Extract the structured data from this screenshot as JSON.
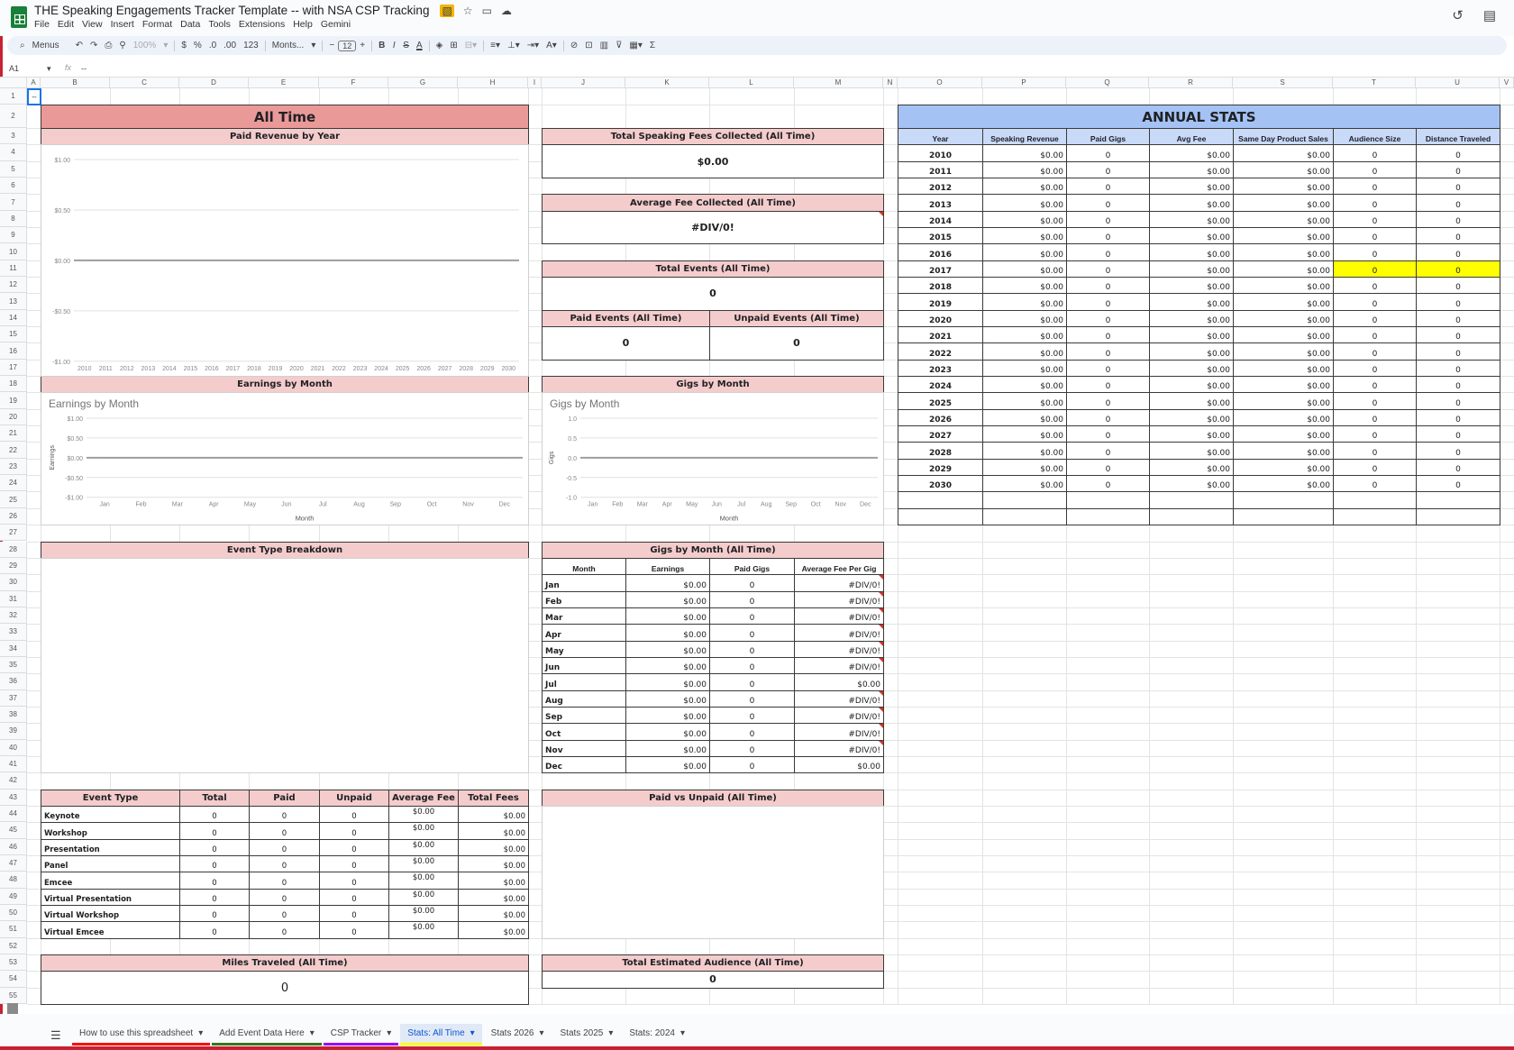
{
  "app": {
    "title": "THE Speaking Engagements Tracker Template -- with NSA CSP Tracking",
    "title_icons": [
      "extension-icon",
      "star-icon",
      "move-folder-icon",
      "cloud-status-icon"
    ],
    "menu": [
      "File",
      "Edit",
      "View",
      "Insert",
      "Format",
      "Data",
      "Tools",
      "Extensions",
      "Help",
      "Gemini"
    ],
    "top_right_icons": [
      "version-history-icon",
      "comments-icon"
    ]
  },
  "toolbar": {
    "search_label": "Menus",
    "zoom": "100%",
    "currency": "$",
    "percent": "%",
    "decrease_decimal": ".0",
    "increase_decimal": ".00",
    "number_format": "123",
    "font": "Monts...",
    "font_size": "12",
    "bold": "B",
    "italic": "I",
    "strike": "S",
    "text_color": "A",
    "sum": "Σ"
  },
  "formula_bar": {
    "cell_ref": "A1",
    "fx": "fx",
    "value": "--"
  },
  "grid": {
    "columns": [
      "A",
      "B",
      "C",
      "D",
      "E",
      "F",
      "G",
      "H",
      "I",
      "J",
      "K",
      "L",
      "M",
      "N",
      "O",
      "P",
      "Q",
      "R",
      "S",
      "T",
      "U",
      "V"
    ],
    "first_row": 1,
    "last_row": 55,
    "selected_cell_value": "--"
  },
  "all_time": {
    "title": "All Time",
    "paid_revenue_header": "Paid Revenue by Year",
    "total_fees_header": "Total Speaking Fees Collected (All Time)",
    "total_fees_value": "$0.00",
    "avg_fee_header": "Average Fee Collected (All Time)",
    "avg_fee_value": "#DIV/0!",
    "total_events_header": "Total Events (All Time)",
    "total_events_value": "0",
    "paid_events_header": "Paid Events (All Time)",
    "paid_events_value": "0",
    "unpaid_events_header": "Unpaid Events (All Time)",
    "unpaid_events_value": "0",
    "earnings_month_header": "Earnings by Month",
    "gigs_month_header": "Gigs by Month",
    "event_type_header": "Event Type Breakdown",
    "gigs_month_all_header": "Gigs by Month (All Time)",
    "paid_vs_unpaid_header": "Paid vs Unpaid (All Time)",
    "miles_header": "Miles Traveled (All Time)",
    "miles_value": "0",
    "audience_header": "Total Estimated Audience (All Time)",
    "audience_value": "0"
  },
  "gigs_table": {
    "columns": [
      "Month",
      "Earnings",
      "Paid Gigs",
      "Average Fee Per Gig"
    ],
    "rows": [
      [
        "Jan",
        "$0.00",
        "0",
        "#DIV/0!"
      ],
      [
        "Feb",
        "$0.00",
        "0",
        "#DIV/0!"
      ],
      [
        "Mar",
        "$0.00",
        "0",
        "#DIV/0!"
      ],
      [
        "Apr",
        "$0.00",
        "0",
        "#DIV/0!"
      ],
      [
        "May",
        "$0.00",
        "0",
        "#DIV/0!"
      ],
      [
        "Jun",
        "$0.00",
        "0",
        "#DIV/0!"
      ],
      [
        "Jul",
        "$0.00",
        "0",
        "$0.00"
      ],
      [
        "Aug",
        "$0.00",
        "0",
        "#DIV/0!"
      ],
      [
        "Sep",
        "$0.00",
        "0",
        "#DIV/0!"
      ],
      [
        "Oct",
        "$0.00",
        "0",
        "#DIV/0!"
      ],
      [
        "Nov",
        "$0.00",
        "0",
        "#DIV/0!"
      ],
      [
        "Dec",
        "$0.00",
        "0",
        "$0.00"
      ]
    ]
  },
  "event_table": {
    "columns": [
      "Event Type",
      "Total",
      "Paid",
      "Unpaid",
      "Average Fee",
      "Total Fees"
    ],
    "rows": [
      [
        "Keynote",
        "0",
        "0",
        "0",
        "$0.00",
        "$0.00"
      ],
      [
        "Workshop",
        "0",
        "0",
        "0",
        "$0.00",
        "$0.00"
      ],
      [
        "Presentation",
        "0",
        "0",
        "0",
        "$0.00",
        "$0.00"
      ],
      [
        "Panel",
        "0",
        "0",
        "0",
        "$0.00",
        "$0.00"
      ],
      [
        "Emcee",
        "0",
        "0",
        "0",
        "$0.00",
        "$0.00"
      ],
      [
        "Virtual Presentation",
        "0",
        "0",
        "0",
        "$0.00",
        "$0.00"
      ],
      [
        "Virtual Workshop",
        "0",
        "0",
        "0",
        "$0.00",
        "$0.00"
      ],
      [
        "Virtual Emcee",
        "0",
        "0",
        "0",
        "$0.00",
        "$0.00"
      ]
    ]
  },
  "annual_stats": {
    "title": "ANNUAL STATS",
    "columns": [
      "Year",
      "Speaking Revenue",
      "Paid Gigs",
      "Avg Fee",
      "Same Day Product Sales",
      "Audience Size",
      "Distance Traveled"
    ],
    "highlight_color": "#ffff00",
    "highlighted_year": "2017",
    "rows": [
      [
        "2010",
        "$0.00",
        "0",
        "$0.00",
        "$0.00",
        "0",
        "0"
      ],
      [
        "2011",
        "$0.00",
        "0",
        "$0.00",
        "$0.00",
        "0",
        "0"
      ],
      [
        "2012",
        "$0.00",
        "0",
        "$0.00",
        "$0.00",
        "0",
        "0"
      ],
      [
        "2013",
        "$0.00",
        "0",
        "$0.00",
        "$0.00",
        "0",
        "0"
      ],
      [
        "2014",
        "$0.00",
        "0",
        "$0.00",
        "$0.00",
        "0",
        "0"
      ],
      [
        "2015",
        "$0.00",
        "0",
        "$0.00",
        "$0.00",
        "0",
        "0"
      ],
      [
        "2016",
        "$0.00",
        "0",
        "$0.00",
        "$0.00",
        "0",
        "0"
      ],
      [
        "2017",
        "$0.00",
        "0",
        "$0.00",
        "$0.00",
        "0",
        "0"
      ],
      [
        "2018",
        "$0.00",
        "0",
        "$0.00",
        "$0.00",
        "0",
        "0"
      ],
      [
        "2019",
        "$0.00",
        "0",
        "$0.00",
        "$0.00",
        "0",
        "0"
      ],
      [
        "2020",
        "$0.00",
        "0",
        "$0.00",
        "$0.00",
        "0",
        "0"
      ],
      [
        "2021",
        "$0.00",
        "0",
        "$0.00",
        "$0.00",
        "0",
        "0"
      ],
      [
        "2022",
        "$0.00",
        "0",
        "$0.00",
        "$0.00",
        "0",
        "0"
      ],
      [
        "2023",
        "$0.00",
        "0",
        "$0.00",
        "$0.00",
        "0",
        "0"
      ],
      [
        "2024",
        "$0.00",
        "0",
        "$0.00",
        "$0.00",
        "0",
        "0"
      ],
      [
        "2025",
        "$0.00",
        "0",
        "$0.00",
        "$0.00",
        "0",
        "0"
      ],
      [
        "2026",
        "$0.00",
        "0",
        "$0.00",
        "$0.00",
        "0",
        "0"
      ],
      [
        "2027",
        "$0.00",
        "0",
        "$0.00",
        "$0.00",
        "0",
        "0"
      ],
      [
        "2028",
        "$0.00",
        "0",
        "$0.00",
        "$0.00",
        "0",
        "0"
      ],
      [
        "2029",
        "$0.00",
        "0",
        "$0.00",
        "$0.00",
        "0",
        "0"
      ],
      [
        "2030",
        "$0.00",
        "0",
        "$0.00",
        "$0.00",
        "0",
        "0"
      ]
    ]
  },
  "colors": {
    "header_red": "#ea9999",
    "header_pink": "#f4cccc",
    "header_blue": "#a4c2f4",
    "subheader_blue": "#c9daf8",
    "series_line": "#9e9e9e"
  },
  "chart_data": [
    {
      "id": "paid-revenue",
      "type": "line",
      "title": "",
      "xlabel": "",
      "ylabel": "",
      "categories": [
        "2010",
        "2011",
        "2012",
        "2013",
        "2014",
        "2015",
        "2016",
        "2017",
        "2018",
        "2019",
        "2020",
        "2021",
        "2022",
        "2023",
        "2024",
        "2025",
        "2026",
        "2027",
        "2028",
        "2029",
        "2030"
      ],
      "values": [
        0,
        0,
        0,
        0,
        0,
        0,
        0,
        0,
        0,
        0,
        0,
        0,
        0,
        0,
        0,
        0,
        0,
        0,
        0,
        0,
        0
      ],
      "ylim": [
        -1,
        1
      ],
      "yticks": [
        "-$1.00",
        "-$0.50",
        "$0.00",
        "$0.50",
        "$1.00"
      ],
      "grid": true
    },
    {
      "id": "earnings-month",
      "type": "line",
      "title": "Earnings by Month",
      "xlabel": "Month",
      "ylabel": "Earnings",
      "categories": [
        "Jan",
        "Feb",
        "Mar",
        "Apr",
        "May",
        "Jun",
        "Jul",
        "Aug",
        "Sep",
        "Oct",
        "Nov",
        "Dec"
      ],
      "values": [
        0,
        0,
        0,
        0,
        0,
        0,
        0,
        0,
        0,
        0,
        0,
        0
      ],
      "ylim": [
        -1,
        1
      ],
      "yticks": [
        "-$1.00",
        "-$0.50",
        "$0.00",
        "$0.50",
        "$1.00"
      ],
      "grid": true
    },
    {
      "id": "gigs-month",
      "type": "line",
      "title": "Gigs by Month",
      "xlabel": "Month",
      "ylabel": "Gigs",
      "categories": [
        "Jan",
        "Feb",
        "Mar",
        "Apr",
        "May",
        "Jun",
        "Jul",
        "Aug",
        "Sep",
        "Oct",
        "Nov",
        "Dec"
      ],
      "values": [
        0,
        0,
        0,
        0,
        0,
        0,
        0,
        0,
        0,
        0,
        0,
        0
      ],
      "ylim": [
        -1,
        1
      ],
      "yticks": [
        "-1.0",
        "-0.5",
        "0.0",
        "0.5",
        "1.0"
      ],
      "grid": true
    }
  ],
  "tabs": [
    {
      "label": "How to use this spreadsheet",
      "color": "#ff0000"
    },
    {
      "label": "Add Event Data Here",
      "color": "#38761d"
    },
    {
      "label": "CSP Tracker",
      "color": "#9900ff"
    },
    {
      "label": "Stats: All Time",
      "color": "#ffff00",
      "active": true
    },
    {
      "label": "Stats 2026",
      "color": ""
    },
    {
      "label": "Stats 2025",
      "color": ""
    },
    {
      "label": "Stats: 2024",
      "color": ""
    }
  ]
}
